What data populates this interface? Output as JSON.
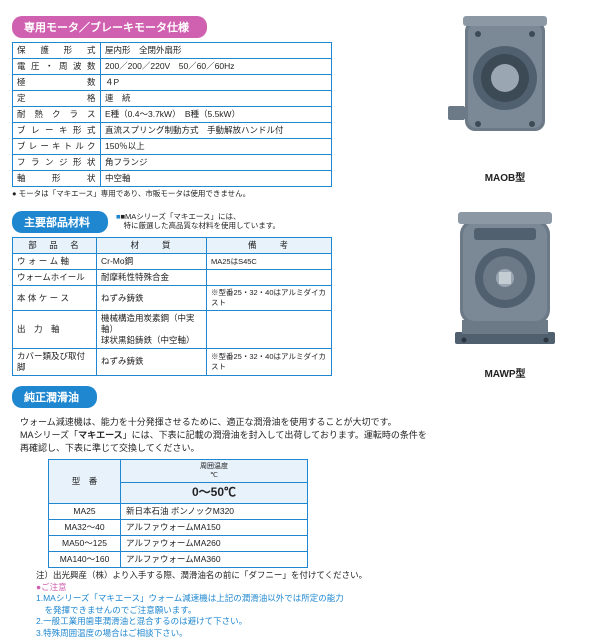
{
  "sections": {
    "motor": "専用モータ／ブレーキモータ仕様",
    "parts": "主要部品材料",
    "oil": "純正潤滑油"
  },
  "motorSpec": {
    "rows": [
      {
        "label": "保 護 形 式",
        "value": "屋内形　全閉外扇形"
      },
      {
        "label": "電圧・周波数",
        "value": "200／200／220V　50／60／60Hz"
      },
      {
        "label": "極　　　数",
        "value": "４P"
      },
      {
        "label": "定　　　格",
        "value": "連　続"
      },
      {
        "label": "耐 熱 ク ラ ス",
        "value": "E種（0.4～3.7kW）　B種（5.5kW）"
      },
      {
        "label": "ブレーキ形式",
        "value": "直流スプリング制動方式　手動解放ハンドル付"
      },
      {
        "label": "ブレーキトルク",
        "value": "150％以上"
      },
      {
        "label": "フランジ形状",
        "value": "角フランジ"
      },
      {
        "label": "軸　形　状",
        "value": "中空軸"
      }
    ],
    "note": "● モータは「マキエース」専用であり、市販モータは使用できません。"
  },
  "partsSpec": {
    "sideNote": "■MAシリーズ「マキエース」には、\n　特に厳選した高品質な材料を使用しています。",
    "headers": [
      "部　品　名",
      "材　　質",
      "備　　考"
    ],
    "rows": [
      {
        "name": "ウ ォ ー ム 軸",
        "mat": "Cr-Mo鋼",
        "note": "MA25はS45C"
      },
      {
        "name": "ウォームホイール",
        "mat": "耐摩耗性特殊合金",
        "note": ""
      },
      {
        "name": "本 体 ケ ー ス",
        "mat": "ねずみ鋳鉄",
        "note": "※型番25・32・40はアルミダイカスト"
      },
      {
        "name": "出　力　軸",
        "mat": "機械構造用炭素鋼（中実軸）\n球状黒鉛鋳鉄（中空軸）",
        "note": ""
      },
      {
        "name": "カバー類及び取付脚",
        "mat": "ねずみ鋳鉄",
        "note": "※型番25・32・40はアルミダイカスト"
      }
    ]
  },
  "oilText": {
    "intro1": "ウォーム減速機は、能力を十分発揮させるために、適正な潤滑油を使用することが大切です。",
    "intro2a": "MAシリーズ「",
    "intro2b": "マキエース",
    "intro2c": "」には、下表に記載の潤滑油を封入して出荷しております。運転時の条件を",
    "intro3": "再確認し、下表に準じて交換してください。"
  },
  "oilTable": {
    "head1": "型　番",
    "head2": "周囲温度\n℃",
    "temp": "0～50℃",
    "rows": [
      {
        "model": "MA25",
        "oil": "新日本石油 ボンノックM320"
      },
      {
        "model": "MA32～40",
        "oil": "アルファウォームMA150"
      },
      {
        "model": "MA50～125",
        "oil": "アルファウォームMA260"
      },
      {
        "model": "MA140～160",
        "oil": "アルファウォームMA360"
      }
    ]
  },
  "footnotes": {
    "line1": "注）出光興産（株）より入手する際、潤滑油名の前に「ダフニー」を付けてください。",
    "attn": "●ご注意",
    "n1a": "1.MAシリーズ「マキエース」ウォーム減速機は上記の潤滑油以外では所定の能力",
    "n1b": "　を発揮できませんのでご注意願います。",
    "n2": "2.一般工業用歯車潤滑油と混合するのは避けて下さい。",
    "n3": "3.特殊周囲温度の場合はご相談下さい。"
  },
  "products": {
    "maob": "MAOB型",
    "mawp": "MAWP型"
  },
  "colors": {
    "blue": "#1f87d0",
    "purple": "#d060b0",
    "black": "#222",
    "cellbg": "#e7f2fb",
    "gear": "#6c7987",
    "gearDark": "#50606e",
    "gearLight": "#9aa6b2"
  }
}
